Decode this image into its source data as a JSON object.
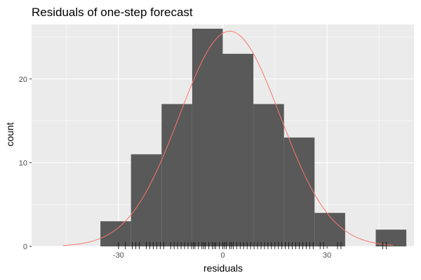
{
  "chart_data": {
    "type": "histogram",
    "title": "Residuals of one-step forecast",
    "xlabel": "residuals",
    "ylabel": "count",
    "xlim": [
      -55,
      55
    ],
    "ylim": [
      0,
      26.5
    ],
    "x_ticks": [
      -30,
      0,
      30
    ],
    "y_ticks": [
      0,
      10,
      20
    ],
    "grid": true,
    "bin_width": 8.8,
    "bins": [
      {
        "x0": -35.2,
        "x1": -26.4,
        "count": 3
      },
      {
        "x0": -26.4,
        "x1": -17.6,
        "count": 11
      },
      {
        "x0": -17.6,
        "x1": -8.8,
        "count": 17
      },
      {
        "x0": -8.8,
        "x1": 0.0,
        "count": 26
      },
      {
        "x0": 0.0,
        "x1": 8.8,
        "count": 23
      },
      {
        "x0": 8.8,
        "x1": 17.6,
        "count": 17
      },
      {
        "x0": 17.6,
        "x1": 26.4,
        "count": 13
      },
      {
        "x0": 26.4,
        "x1": 35.2,
        "count": 4
      },
      {
        "x0": 35.2,
        "x1": 44.0,
        "count": 0
      },
      {
        "x0": 44.0,
        "x1": 52.8,
        "count": 2
      }
    ],
    "normal_curve": {
      "mean": 2,
      "sd": 14.5,
      "peak_count": 25.7,
      "x_range": [
        -46,
        49
      ]
    },
    "rug": [
      -30,
      -28,
      -26,
      -25,
      -24,
      -22,
      -21,
      -20,
      -19,
      -18,
      -17,
      -15,
      -14,
      -13,
      -12,
      -11,
      -10,
      -9,
      -8.5,
      -8,
      -7,
      -6,
      -5.5,
      -5,
      -4,
      -3,
      -2.5,
      -2,
      -1,
      0,
      0.5,
      1,
      2,
      2.5,
      3,
      4,
      5,
      6,
      7,
      8,
      9,
      10,
      11,
      12,
      13,
      14,
      15,
      16,
      17,
      18,
      19,
      20,
      21,
      22,
      23,
      24,
      25,
      26,
      28,
      29,
      33,
      34,
      46,
      47
    ],
    "colors": {
      "panel": "#ebebeb",
      "grid": "#ffffff",
      "bar": "#595959",
      "curve": "#f8766d",
      "rug": "#000000"
    }
  }
}
